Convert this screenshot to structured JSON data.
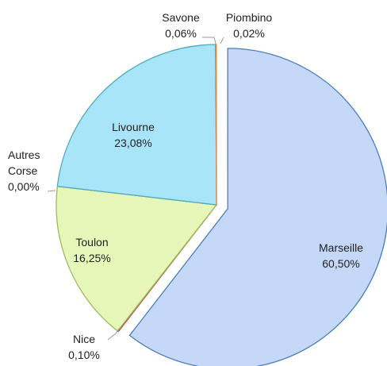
{
  "chart_data": {
    "type": "pie",
    "categories": [
      "Marseille",
      "Nice",
      "Toulon",
      "Autres Corse",
      "Livourne",
      "Savone",
      "Piombino"
    ],
    "values": [
      60.5,
      0.1,
      16.25,
      0.0,
      23.08,
      0.06,
      0.02
    ],
    "value_labels": [
      "60,50%",
      "0,10%",
      "16,25%",
      "0,00%",
      "23,08%",
      "0,06%",
      "0,02%"
    ],
    "colors": [
      "#c6d8f7",
      "#c0504d",
      "#e6f7b9",
      "#9bbb59",
      "#a8e5f8",
      "#8064a2",
      "#f79646"
    ],
    "exploded": "Marseille"
  }
}
